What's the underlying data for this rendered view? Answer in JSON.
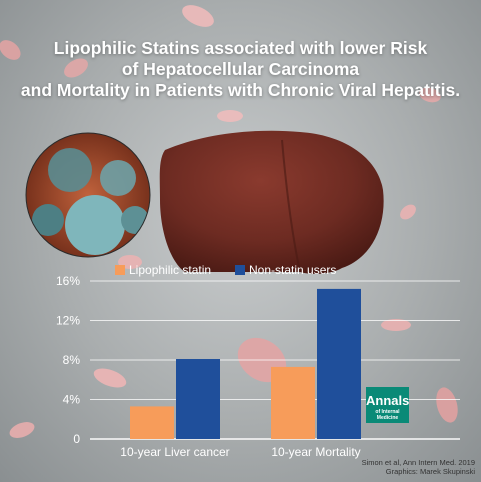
{
  "title_lines": [
    "Lipophilic Statins associated with lower Risk",
    "of Hepatocellular Carcinoma",
    "and Mortality in Patients with Chronic Viral Hepatitis."
  ],
  "badge": {
    "line1": "Annals",
    "line2": "of Internal Medicine"
  },
  "credit": {
    "line1": "Simon et al, Ann Intern Med. 2019",
    "line2": "Graphics: Marek Skupinski"
  },
  "colors": {
    "lipophilic": "#f79c5a",
    "nonstatin": "#1f4f9b",
    "liver": "#6d2b22",
    "pill": "#e7b9b9"
  },
  "icons": [
    "pill-icon",
    "virus-icon",
    "liver-icon"
  ],
  "chart_data": {
    "type": "bar",
    "categories": [
      "10-year Liver cancer",
      "10-year Mortality"
    ],
    "series": [
      {
        "name": "Lipophilic statin",
        "values": [
          3.3,
          7.3
        ]
      },
      {
        "name": "Non-statin users",
        "values": [
          8.1,
          15.2
        ]
      }
    ],
    "yticks": [
      "0",
      "4%",
      "8%",
      "12%",
      "16%"
    ],
    "ylim": [
      0,
      16
    ],
    "grid": true,
    "legend": "top"
  }
}
